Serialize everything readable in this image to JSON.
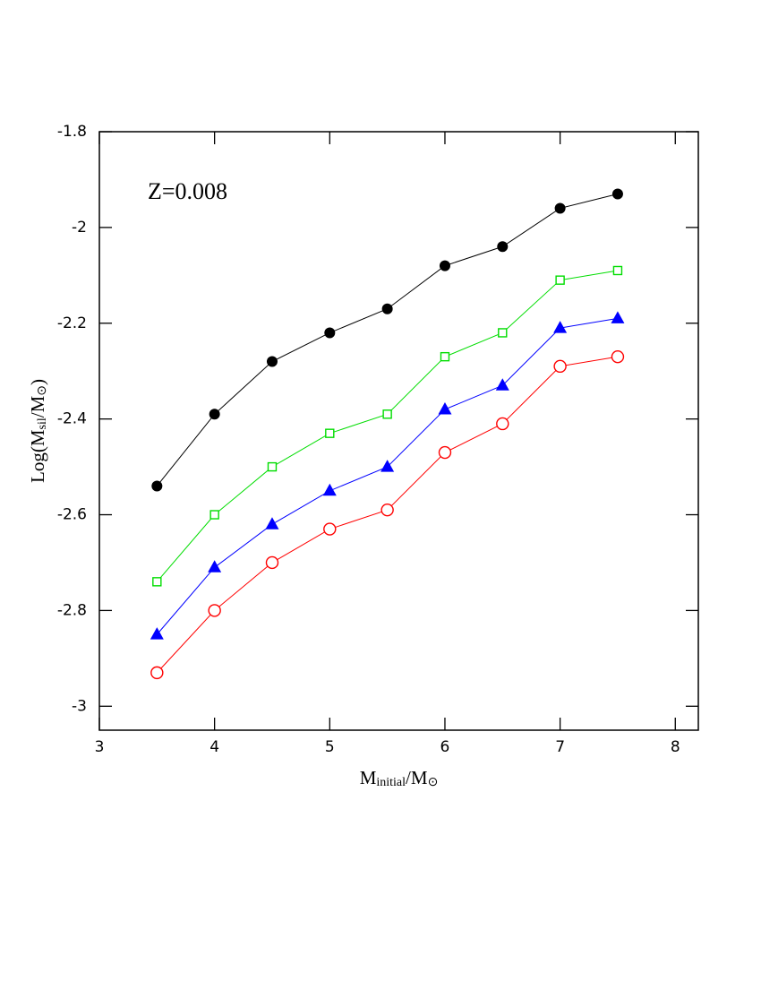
{
  "chart_data": {
    "type": "line",
    "annotation": "Z=0.008",
    "xlabel": [
      "M",
      "initial",
      "/M",
      "⊙"
    ],
    "ylabel": [
      "Log(M",
      "sil",
      "/M",
      "⊙",
      ")"
    ],
    "x": [
      3.5,
      4,
      4.5,
      5,
      5.5,
      6,
      6.5,
      7,
      7.5
    ],
    "series": [
      {
        "color": "#000000",
        "marker": "circle-filled",
        "values": [
          -2.54,
          -2.39,
          -2.28,
          -2.22,
          -2.17,
          -2.08,
          -2.04,
          -1.96,
          -1.93
        ]
      },
      {
        "color": "#00dd00",
        "marker": "square-open",
        "values": [
          -2.74,
          -2.6,
          -2.5,
          -2.43,
          -2.39,
          -2.27,
          -2.22,
          -2.11,
          -2.09
        ]
      },
      {
        "color": "#0000ff",
        "marker": "triangle-filled",
        "values": [
          -2.85,
          -2.71,
          -2.62,
          -2.55,
          -2.5,
          -2.38,
          -2.33,
          -2.21,
          -2.19
        ]
      },
      {
        "color": "#ff0000",
        "marker": "circle-open",
        "values": [
          -2.93,
          -2.8,
          -2.7,
          -2.63,
          -2.59,
          -2.47,
          -2.41,
          -2.29,
          -2.27
        ]
      }
    ],
    "xlim": [
      3,
      8.2
    ],
    "xticks": [
      3,
      4,
      5,
      6,
      7,
      8
    ],
    "ylim": [
      -3.05,
      -1.8
    ],
    "yticks": [
      -3,
      -2.8,
      -2.6,
      -2.4,
      -2.2,
      -2,
      -1.8
    ]
  }
}
